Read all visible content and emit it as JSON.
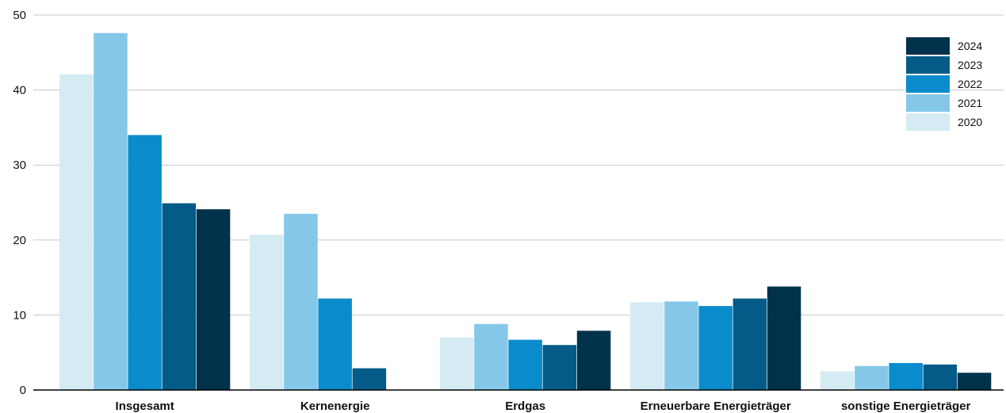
{
  "chart_data": {
    "type": "bar",
    "title": "",
    "xlabel": "",
    "ylabel": "",
    "ylim": [
      0,
      50
    ],
    "yticks": [
      0,
      10,
      20,
      30,
      40,
      50
    ],
    "grid": true,
    "legend_position": "top-right",
    "categories": [
      "Insgesamt",
      "Kernenergie",
      "Erdgas",
      "Erneuerbare Energieträger",
      "sonstige Energieträger"
    ],
    "series": [
      {
        "name": "2020",
        "color": "#d4ebf3",
        "values": [
          42.1,
          20.7,
          7.0,
          11.7,
          2.5
        ]
      },
      {
        "name": "2021",
        "color": "#85c7e8",
        "values": [
          47.6,
          23.5,
          8.8,
          11.8,
          3.2
        ]
      },
      {
        "name": "2022",
        "color": "#0a8ccc",
        "values": [
          34.0,
          12.2,
          6.7,
          11.2,
          3.6
        ]
      },
      {
        "name": "2023",
        "color": "#045b88",
        "values": [
          24.9,
          2.9,
          6.0,
          12.2,
          3.4
        ]
      },
      {
        "name": "2024",
        "color": "#00324c",
        "values": [
          24.1,
          null,
          7.9,
          13.8,
          2.3
        ]
      }
    ]
  }
}
